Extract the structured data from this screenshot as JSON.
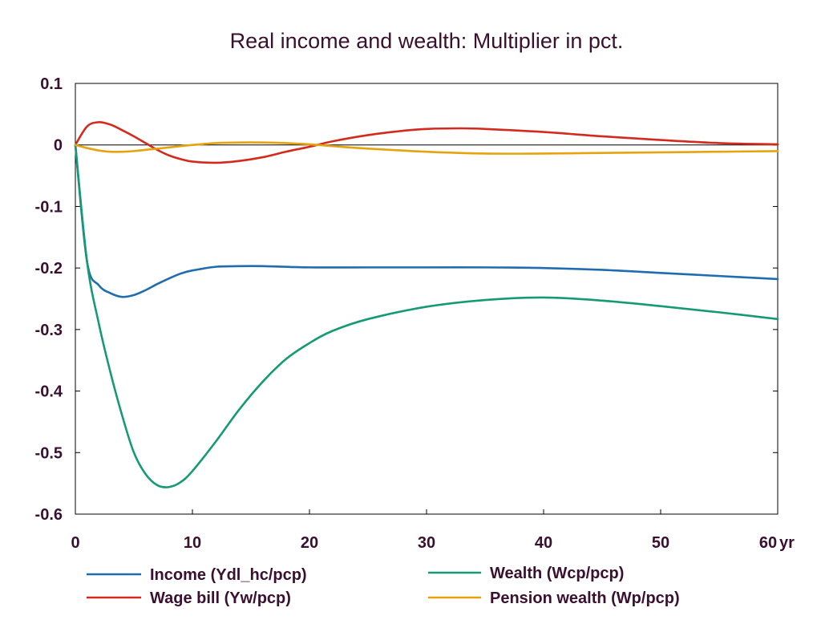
{
  "chart_data": {
    "type": "line",
    "title": "Real income and wealth: Multiplier in pct.",
    "xlabel": "",
    "ylabel": "",
    "x_unit_label": "yr",
    "xlim": [
      0,
      60
    ],
    "ylim": [
      -0.6,
      0.1
    ],
    "x_ticks": [
      0,
      10,
      20,
      30,
      40,
      50,
      60
    ],
    "x_tick_labels": [
      "0",
      "10",
      "20",
      "30",
      "40",
      "50",
      "60"
    ],
    "y_ticks": [
      0.1,
      0,
      -0.1,
      -0.2,
      -0.3,
      -0.4,
      -0.5,
      -0.6
    ],
    "y_tick_labels": [
      "0.1",
      "0",
      "-0.1",
      "-0.2",
      "-0.3",
      "-0.4",
      "-0.5",
      "-0.6"
    ],
    "grid": false,
    "zero_line": true,
    "legend_position": "bottom",
    "series": [
      {
        "name": "Income (Ydl_hc/pcp)",
        "color": "#1f6db0",
        "x": [
          0,
          1,
          2,
          3,
          4,
          5,
          6,
          7,
          8,
          9,
          10,
          12,
          14,
          16,
          20,
          25,
          30,
          35,
          40,
          45,
          50,
          55,
          60
        ],
        "values": [
          0,
          -0.19,
          -0.228,
          -0.241,
          -0.247,
          -0.244,
          -0.236,
          -0.226,
          -0.217,
          -0.209,
          -0.204,
          -0.198,
          -0.197,
          -0.197,
          -0.199,
          -0.199,
          -0.199,
          -0.199,
          -0.2,
          -0.203,
          -0.208,
          -0.213,
          -0.218
        ]
      },
      {
        "name": "Wage bill (Yw/pcp)",
        "color": "#d42a1e",
        "x": [
          0,
          1,
          2,
          3,
          4,
          5,
          6,
          7,
          8,
          9,
          10,
          12,
          14,
          16,
          18,
          20,
          22,
          25,
          28,
          30,
          33,
          35,
          40,
          45,
          50,
          55,
          60
        ],
        "values": [
          0,
          0.03,
          0.037,
          0.033,
          0.024,
          0.014,
          0.003,
          -0.008,
          -0.017,
          -0.023,
          -0.027,
          -0.029,
          -0.026,
          -0.02,
          -0.011,
          -0.003,
          0.006,
          0.016,
          0.023,
          0.026,
          0.027,
          0.026,
          0.021,
          0.014,
          0.008,
          0.003,
          0.001
        ]
      },
      {
        "name": "Wealth (Wcp/pcp)",
        "color": "#169a75",
        "x": [
          0,
          1,
          2,
          3,
          4,
          5,
          6,
          7,
          8,
          9,
          10,
          12,
          14,
          16,
          18,
          20,
          22,
          25,
          30,
          35,
          40,
          45,
          50,
          55,
          60
        ],
        "values": [
          0,
          -0.19,
          -0.29,
          -0.37,
          -0.44,
          -0.5,
          -0.535,
          -0.553,
          -0.556,
          -0.548,
          -0.53,
          -0.482,
          -0.43,
          -0.385,
          -0.348,
          -0.322,
          -0.302,
          -0.283,
          -0.263,
          -0.252,
          -0.248,
          -0.253,
          -0.262,
          -0.272,
          -0.283
        ]
      },
      {
        "name": "Pension wealth (Wp/pcp)",
        "color": "#e6a30e",
        "x": [
          0,
          1,
          2,
          3,
          4,
          5,
          6,
          8,
          10,
          12,
          14,
          16,
          18,
          20,
          22,
          25,
          30,
          35,
          40,
          45,
          50,
          55,
          60
        ],
        "values": [
          0,
          -0.005,
          -0.009,
          -0.011,
          -0.011,
          -0.01,
          -0.008,
          -0.004,
          0,
          0.003,
          0.004,
          0.004,
          0.003,
          0.001,
          -0.002,
          -0.006,
          -0.011,
          -0.014,
          -0.014,
          -0.013,
          -0.012,
          -0.011,
          -0.01
        ]
      }
    ]
  }
}
